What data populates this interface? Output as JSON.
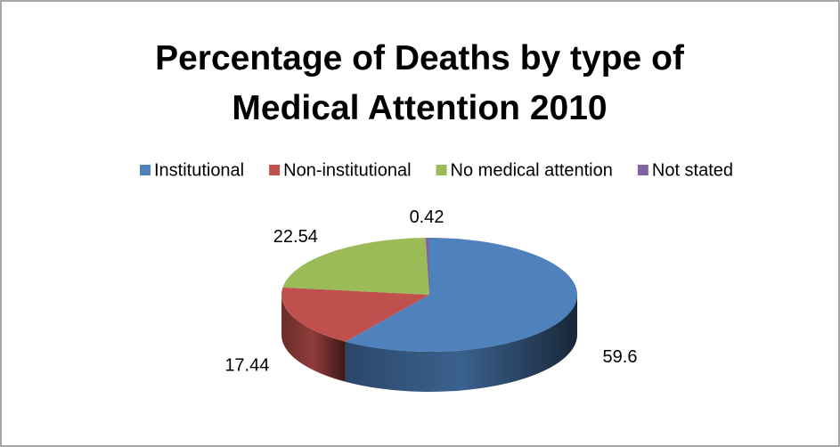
{
  "chart_data": {
    "type": "pie",
    "title": "Percentage of Deaths by type of Medical Attention 2010",
    "categories": [
      "Institutional",
      "Non-institutional",
      "No medical attention",
      "Not stated"
    ],
    "values": [
      59.6,
      17.44,
      22.54,
      0.42
    ],
    "colors": [
      "#4f81bd",
      "#c0504d",
      "#9bbb59",
      "#8064a2"
    ],
    "legend": "top"
  }
}
